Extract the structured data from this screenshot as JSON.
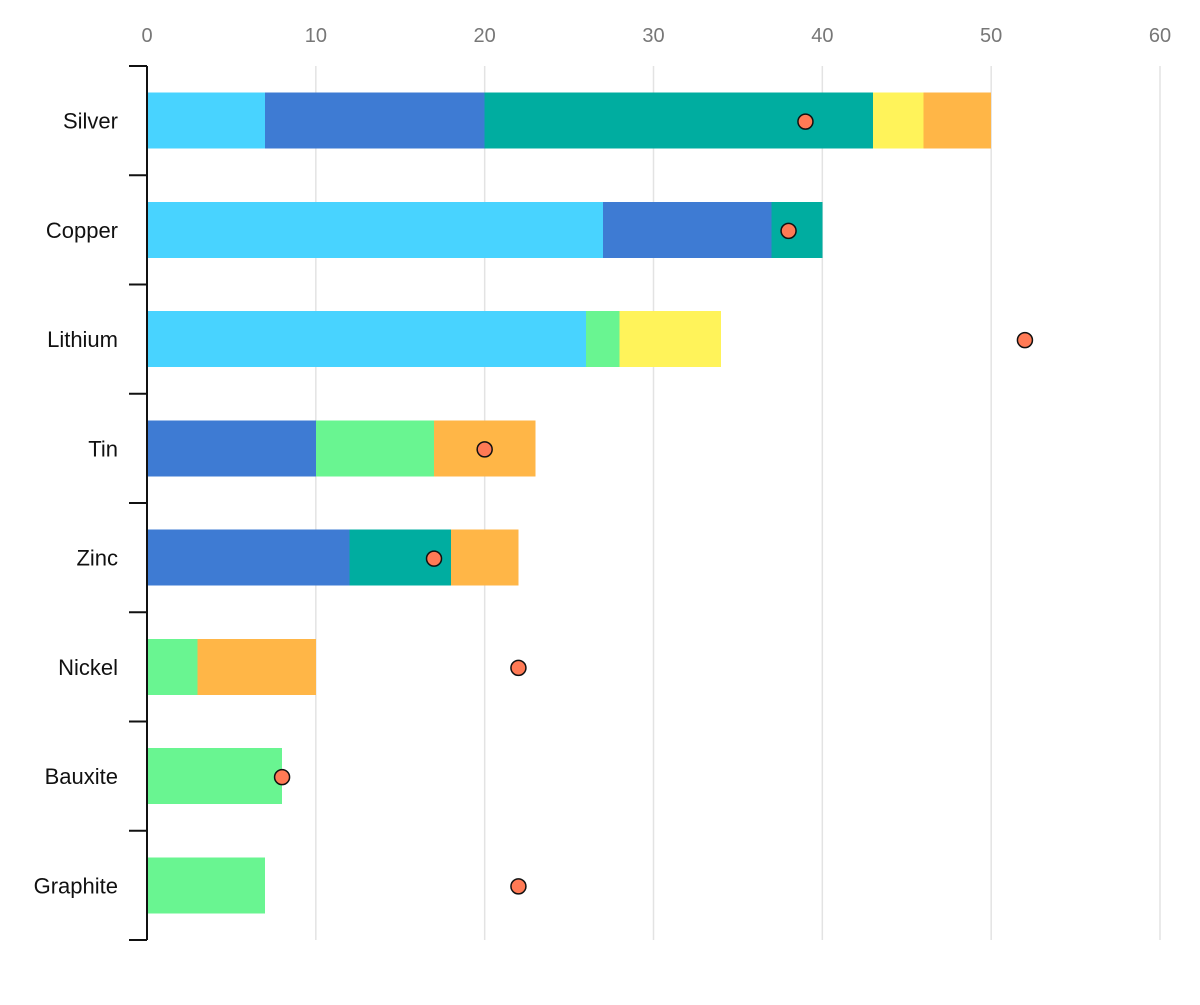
{
  "chart_data": {
    "type": "bar",
    "orientation": "horizontal",
    "stacked": true,
    "title": "",
    "xlabel": "",
    "ylabel": "",
    "xlim": [
      0,
      60
    ],
    "x_ticks": [
      0,
      10,
      20,
      30,
      40,
      50,
      60
    ],
    "x_axis_position": "top",
    "grid": {
      "vertical": true,
      "horizontal": false
    },
    "legend": "none",
    "categories": [
      "Silver",
      "Copper",
      "Lithium",
      "Tin",
      "Zinc",
      "Nickel",
      "Bauxite",
      "Graphite"
    ],
    "series": [
      {
        "color": "#48D3FF",
        "values": [
          7,
          27,
          26,
          0,
          0,
          0,
          0,
          0
        ]
      },
      {
        "color": "#3E7BD3",
        "values": [
          13,
          10,
          0,
          10,
          12,
          0,
          0,
          0
        ]
      },
      {
        "color": "#69F591",
        "values": [
          0,
          0,
          2,
          7,
          0,
          3,
          8,
          7
        ]
      },
      {
        "color": "#00ADA0",
        "values": [
          23,
          3,
          0,
          0,
          6,
          0,
          0,
          0
        ]
      },
      {
        "color": "#FFF35A",
        "values": [
          3,
          0,
          6,
          0,
          0,
          0,
          0,
          0
        ]
      },
      {
        "color": "#FFB647",
        "values": [
          4,
          0,
          0,
          6,
          4,
          7,
          0,
          0
        ]
      }
    ],
    "markers": {
      "color": "#FF7A55",
      "values": [
        39,
        38,
        52,
        20,
        17,
        22,
        8,
        22
      ]
    }
  }
}
